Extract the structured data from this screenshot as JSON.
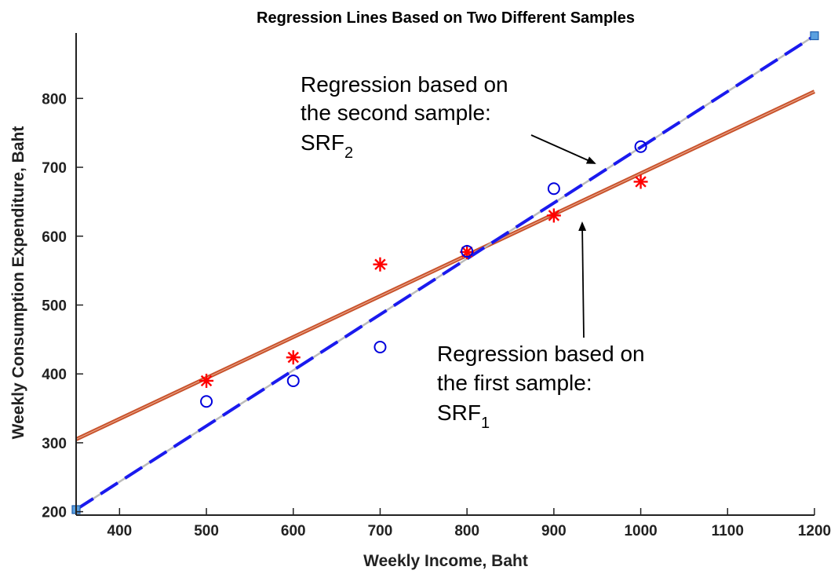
{
  "chart_data": {
    "type": "scatter",
    "title": "Regression Lines Based on Two Different Samples",
    "xlabel": "Weekly Income, Baht",
    "ylabel": "Weekly Consumption Expenditure, Baht",
    "xlim": [
      350,
      1200
    ],
    "ylim": [
      195,
      895
    ],
    "xticks": [
      400,
      500,
      600,
      700,
      800,
      900,
      1000,
      1100,
      1200
    ],
    "yticks": [
      200,
      300,
      400,
      500,
      600,
      700,
      800
    ],
    "grid": false,
    "points": [
      {
        "marker": "asterisk",
        "color": "#ff0000",
        "x": [
          500,
          600,
          700,
          800,
          900,
          1000
        ],
        "y": [
          390,
          424,
          559,
          577,
          630,
          679
        ]
      },
      {
        "marker": "circle",
        "color": "#0000dd",
        "x": [
          500,
          600,
          700,
          800,
          900,
          1000
        ],
        "y": [
          360,
          390,
          439,
          578,
          669,
          730
        ]
      }
    ],
    "lines": [
      {
        "style": "solid",
        "color": "#c8522b",
        "x": [
          350,
          1200
        ],
        "y": [
          305,
          810
        ]
      },
      {
        "style": "dashed",
        "color": "#1a1aee",
        "under_color": "#bbbbbb",
        "x": [
          350,
          1200
        ],
        "y": [
          203,
          891
        ],
        "endpoint_marker": "square"
      }
    ],
    "annotations": [
      {
        "lines": [
          "Regression based on",
          "the second sample:"
        ],
        "symbol": "SRF",
        "subscript": "2",
        "arrow_to": {
          "x": 965,
          "y": 700
        }
      },
      {
        "lines": [
          "Regression based on",
          "the first sample:"
        ],
        "symbol": "SRF",
        "subscript": "1",
        "arrow_to": {
          "x": 935,
          "y": 652
        }
      }
    ]
  }
}
